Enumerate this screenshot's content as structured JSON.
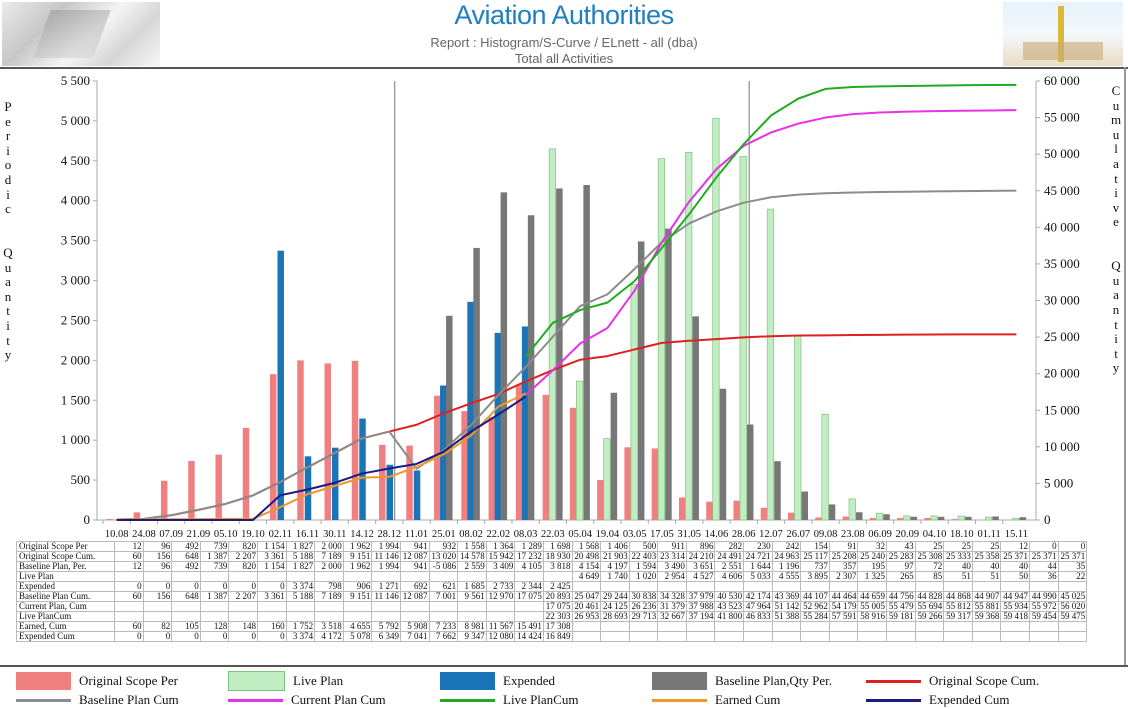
{
  "header": {
    "title": "Aviation Authorities",
    "subtitle": "Report : Histogram/S-Curve / ELnett - all   (dba)",
    "subtitle2": "Total all Activities"
  },
  "colors": {
    "original_scope_per": "#f08080",
    "live_plan": "#c2ecc2",
    "live_plan_border": "#7dc57d",
    "expended": "#1a75b8",
    "baseline_plan_per": "#777777",
    "original_scope_cum": "#e02020",
    "baseline_plan_cum": "#8c8c8c",
    "current_plan_cum": "#e633e6",
    "live_plan_cum": "#22aa22",
    "earned_cum": "#f0962a",
    "expended_cum": "#1a1a80"
  },
  "axes": {
    "left_label": "Periodic Quantity",
    "right_label": "Cumulative Quantity"
  },
  "legend": [
    {
      "label": "Original Scope Per",
      "kind": "bar",
      "color_key": "original_scope_per"
    },
    {
      "label": "Live Plan",
      "kind": "bar",
      "color_key": "live_plan"
    },
    {
      "label": "Expended",
      "kind": "bar",
      "color_key": "expended"
    },
    {
      "label": "Baseline Plan,Qty  Per.",
      "kind": "bar",
      "color_key": "baseline_plan_per"
    },
    {
      "label": "Original Scope Cum.",
      "kind": "line",
      "color_key": "original_scope_cum"
    },
    {
      "label": "Baseline Plan Cum",
      "kind": "line",
      "color_key": "baseline_plan_cum"
    },
    {
      "label": "Current Plan  Cum",
      "kind": "line",
      "color_key": "current_plan_cum"
    },
    {
      "label": "Live PlanCum",
      "kind": "line",
      "color_key": "live_plan_cum"
    },
    {
      "label": "Earned  Cum",
      "kind": "line",
      "color_key": "earned_cum"
    },
    {
      "label": "Expended Cum",
      "kind": "line",
      "color_key": "expended_cum"
    }
  ],
  "chart_data": {
    "type": "bar",
    "title": "Aviation Authorities",
    "subtitle": "Report : Histogram/S-Curve / ELnett - all   (dba) — Total all Activities",
    "xlabel": "",
    "ylabel": "Periodic Quantity",
    "y2label": "Cumulative Quantity",
    "ylim": [
      0,
      5500
    ],
    "y2lim": [
      0,
      60000
    ],
    "yticks": [
      "0",
      "500",
      "1 000",
      "1 500",
      "2 000",
      "2 500",
      "3 000",
      "3 500",
      "4 000",
      "4 500",
      "5 000",
      "5 500"
    ],
    "y2ticks": [
      "0",
      "5 000",
      "10 000",
      "15 000",
      "20 000",
      "25 000",
      "30 000",
      "35 000",
      "40 000",
      "45 000",
      "50 000",
      "55 000",
      "60 000"
    ],
    "grid": false,
    "legend_position": "bottom",
    "vertical_markers": [
      "28.12/11.01",
      "28.06/12.07"
    ],
    "categories": [
      "10.08",
      "24.08",
      "07.09",
      "21.09",
      "05.10",
      "19.10",
      "02.11",
      "16.11",
      "30.11",
      "14.12",
      "28.12",
      "11.01",
      "25.01",
      "08.02",
      "22.02",
      "08.03",
      "22.03",
      "05.04",
      "19.04",
      "03.05",
      "17.05",
      "31.05",
      "14.06",
      "28.06",
      "12.07",
      "26.07",
      "09.08",
      "23.08",
      "06.09",
      "20.09",
      "04.10",
      "18.10",
      "01.11",
      "15.11"
    ],
    "bar_series": [
      {
        "name": "Original Scope Per",
        "color_key": "original_scope_per",
        "axis": "left",
        "values": [
          12,
          96,
          492,
          739,
          820,
          1154,
          1827,
          2000,
          1962,
          1994,
          941,
          932,
          1558,
          1364,
          1289,
          1698,
          1568,
          1406,
          500,
          911,
          896,
          282,
          230,
          242,
          154,
          91,
          32,
          43,
          25,
          25,
          25,
          12,
          0,
          0
        ]
      },
      {
        "name": "Expended",
        "color_key": "expended",
        "axis": "left",
        "values": [
          0,
          0,
          0,
          0,
          0,
          0,
          3374,
          798,
          906,
          1271,
          692,
          621,
          1685,
          2733,
          2344,
          2425,
          null,
          null,
          null,
          null,
          null,
          null,
          null,
          null,
          null,
          null,
          null,
          null,
          null,
          null,
          null,
          null,
          null,
          null
        ]
      },
      {
        "name": "Baseline Plan,Qty  Per.",
        "color_key": "baseline_plan_per",
        "axis": "left",
        "values": [
          12,
          96,
          492,
          739,
          820,
          1154,
          1827,
          2000,
          1962,
          1994,
          941,
          -5086,
          2559,
          3409,
          4105,
          3818,
          4154,
          4197,
          1594,
          3490,
          3651,
          2551,
          1644,
          1196,
          737,
          357,
          195,
          97,
          72,
          40,
          40,
          40,
          44,
          35
        ]
      },
      {
        "name": "Live Plan",
        "color_key": "live_plan",
        "axis": "left",
        "values": [
          null,
          null,
          null,
          null,
          null,
          null,
          null,
          null,
          null,
          null,
          null,
          null,
          null,
          null,
          null,
          null,
          4649,
          1740,
          1020,
          2954,
          4527,
          4606,
          5033,
          4555,
          3895,
          2307,
          1325,
          265,
          85,
          51,
          51,
          50,
          36,
          22
        ]
      }
    ],
    "line_series": [
      {
        "name": "Original Scope Cum.",
        "color_key": "original_scope_cum",
        "axis": "right",
        "values": [
          60,
          156,
          648,
          1387,
          2207,
          3361,
          5188,
          7189,
          9151,
          11146,
          12087,
          13020,
          14578,
          15942,
          17232,
          18930,
          20498,
          21903,
          22403,
          23314,
          24210,
          24491,
          24721,
          24963,
          25117,
          25208,
          25240,
          25283,
          25308,
          25333,
          25358,
          25371,
          25371,
          25371
        ]
      },
      {
        "name": "Baseline Plan Cum",
        "color_key": "baseline_plan_cum",
        "axis": "right",
        "values": [
          60,
          156,
          648,
          1387,
          2207,
          3361,
          5188,
          7189,
          9151,
          11146,
          12087,
          7001,
          9561,
          12970,
          17075,
          20893,
          25047,
          29244,
          30838,
          34328,
          37979,
          40530,
          42174,
          43369,
          44107,
          44464,
          44659,
          44756,
          44828,
          44868,
          44907,
          44947,
          44990,
          45025
        ]
      },
      {
        "name": "Current Plan  Cum",
        "color_key": "current_plan_cum",
        "axis": "right",
        "values": [
          null,
          null,
          null,
          null,
          null,
          null,
          null,
          null,
          null,
          null,
          null,
          null,
          null,
          null,
          null,
          17075,
          20461,
          24125,
          26236,
          31379,
          37988,
          43523,
          47964,
          51142,
          52962,
          54179,
          55005,
          55479,
          55694,
          55812,
          55881,
          55934,
          55972,
          56020
        ]
      },
      {
        "name": "Live PlanCum",
        "color_key": "live_plan_cum",
        "axis": "right",
        "values": [
          null,
          null,
          null,
          null,
          null,
          null,
          null,
          null,
          null,
          null,
          null,
          null,
          null,
          null,
          null,
          22303,
          26953,
          28693,
          29713,
          32667,
          37194,
          41800,
          46833,
          51388,
          55284,
          57591,
          58916,
          59181,
          59266,
          59317,
          59368,
          59418,
          59454,
          59475
        ]
      },
      {
        "name": "Earned  Cum",
        "color_key": "earned_cum",
        "axis": "right",
        "values": [
          60,
          82,
          105,
          128,
          148,
          160,
          1752,
          3518,
          4655,
          5792,
          5908,
          7233,
          8981,
          11567,
          15491,
          17308,
          null,
          null,
          null,
          null,
          null,
          null,
          null,
          null,
          null,
          null,
          null,
          null,
          null,
          null,
          null,
          null,
          null,
          null
        ]
      },
      {
        "name": "Expended Cum",
        "color_key": "expended_cum",
        "axis": "right",
        "values": [
          0,
          0,
          0,
          0,
          0,
          0,
          3374,
          4172,
          5078,
          6349,
          7041,
          7662,
          9347,
          12080,
          14424,
          16849,
          null,
          null,
          null,
          null,
          null,
          null,
          null,
          null,
          null,
          null,
          null,
          null,
          null,
          null,
          null,
          null,
          null,
          null
        ]
      }
    ]
  },
  "table": {
    "rows": [
      {
        "label": "Original Scope Per",
        "cells": [
          "12",
          "96",
          "492",
          "739",
          "820",
          "1 154",
          "1 827",
          "2 000",
          "1 962",
          "1 994",
          "941",
          "932",
          "1 558",
          "1 364",
          "1 289",
          "1 698",
          "1 568",
          "1 406",
          "500",
          "911",
          "896",
          "282",
          "230",
          "242",
          "154",
          "91",
          "32",
          "43",
          "25",
          "25",
          "25",
          "12",
          "0",
          "0"
        ]
      },
      {
        "label": "Original Scope Cum.",
        "cells": [
          "60",
          "156",
          "648",
          "1 387",
          "2 207",
          "3 361",
          "5 188",
          "7 189",
          "9 151",
          "11 146",
          "12 087",
          "13 020",
          "14 578",
          "15 942",
          "17 232",
          "18 930",
          "20 498",
          "21 903",
          "22 403",
          "23 314",
          "24 210",
          "24 491",
          "24 721",
          "24 963",
          "25 117",
          "25 208",
          "25 240",
          "25 283",
          "25 308",
          "25 333",
          "25 358",
          "25 371",
          "25 371",
          "25 371"
        ]
      },
      {
        "label": "Baseline Plan, Per.",
        "cells": [
          "12",
          "96",
          "492",
          "739",
          "820",
          "1 154",
          "1 827",
          "2 000",
          "1 962",
          "1 994",
          "941",
          "-5 086",
          "2 559",
          "3 409",
          "4 105",
          "3 818",
          "4 154",
          "4 197",
          "1 594",
          "3 490",
          "3 651",
          "2 551",
          "1 644",
          "1 196",
          "737",
          "357",
          "195",
          "97",
          "72",
          "40",
          "40",
          "40",
          "44",
          "35"
        ]
      },
      {
        "label": "Live Plan",
        "cells": [
          "",
          "",
          "",
          "",
          "",
          "",
          "",
          "",
          "",
          "",
          "",
          "",
          "",
          "",
          "",
          "",
          "4 649",
          "1 740",
          "1 020",
          "2 954",
          "4 527",
          "4 606",
          "5 033",
          "4 555",
          "3 895",
          "2 307",
          "1 325",
          "265",
          "85",
          "51",
          "51",
          "50",
          "36",
          "22"
        ]
      },
      {
        "label": "Expended",
        "cells": [
          "0",
          "0",
          "0",
          "0",
          "0",
          "0",
          "3 374",
          "798",
          "906",
          "1 271",
          "692",
          "621",
          "1 685",
          "2 733",
          "2 344",
          "2 425",
          "",
          "",
          "",
          "",
          "",
          "",
          "",
          "",
          "",
          "",
          "",
          "",
          "",
          "",
          "",
          "",
          "",
          ""
        ]
      },
      {
        "label": "Baseline Plan Cum.",
        "cells": [
          "60",
          "156",
          "648",
          "1 387",
          "2 207",
          "3 361",
          "5 188",
          "7 189",
          "9 151",
          "11 146",
          "12 087",
          "7 001",
          "9 561",
          "12 970",
          "17 075",
          "20 893",
          "25 047",
          "29 244",
          "30 838",
          "34 328",
          "37 979",
          "40 530",
          "42 174",
          "43 369",
          "44 107",
          "44 464",
          "44 659",
          "44 756",
          "44 828",
          "44 868",
          "44 907",
          "44 947",
          "44 990",
          "45 025"
        ]
      },
      {
        "label": "Current Plan, Cum",
        "cells": [
          "",
          "",
          "",
          "",
          "",
          "",
          "",
          "",
          "",
          "",
          "",
          "",
          "",
          "",
          "",
          "17 075",
          "20 461",
          "24 125",
          "26 236",
          "31 379",
          "37 988",
          "43 523",
          "47 964",
          "51 142",
          "52 962",
          "54 179",
          "55 005",
          "55 479",
          "55 694",
          "55 812",
          "55 881",
          "55 934",
          "55 972",
          "56 020"
        ]
      },
      {
        "label": "Live PlanCum",
        "cells": [
          "",
          "",
          "",
          "",
          "",
          "",
          "",
          "",
          "",
          "",
          "",
          "",
          "",
          "",
          "",
          "22 303",
          "26 953",
          "28 693",
          "29 713",
          "32 667",
          "37 194",
          "41 800",
          "46 833",
          "51 388",
          "55 284",
          "57 591",
          "58 916",
          "59 181",
          "59 266",
          "59 317",
          "59 368",
          "59 418",
          "59 454",
          "59 475"
        ]
      },
      {
        "label": "Earned, Cum",
        "cells": [
          "60",
          "82",
          "105",
          "128",
          "148",
          "160",
          "1 752",
          "3 518",
          "4 655",
          "5 792",
          "5 908",
          "7 233",
          "8 981",
          "11 567",
          "15 491",
          "17 308",
          "",
          "",
          "",
          "",
          "",
          "",
          "",
          "",
          "",
          "",
          "",
          "",
          "",
          "",
          "",
          "",
          "",
          ""
        ]
      },
      {
        "label": "Expended Cum",
        "cells": [
          "0",
          "0",
          "0",
          "0",
          "0",
          "0",
          "3 374",
          "4 172",
          "5 078",
          "6 349",
          "7 041",
          "7 662",
          "9 347",
          "12 080",
          "14 424",
          "16 849",
          "",
          "",
          "",
          "",
          "",
          "",
          "",
          "",
          "",
          "",
          "",
          "",
          "",
          "",
          "",
          "",
          "",
          ""
        ]
      }
    ]
  }
}
